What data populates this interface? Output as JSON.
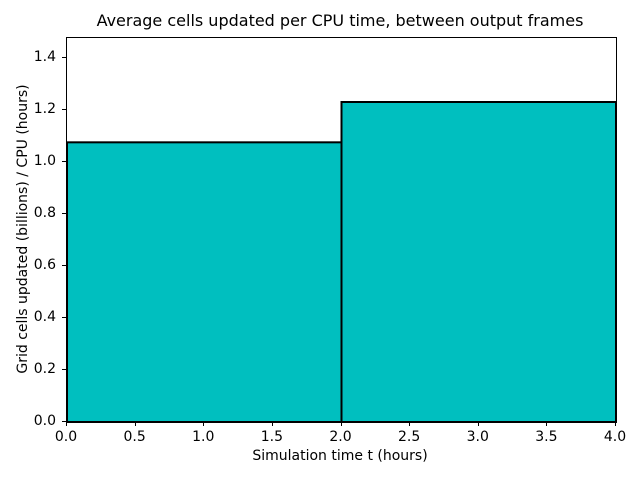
{
  "chart_data": {
    "type": "bar",
    "title": "Average cells updated per CPU time, between output frames",
    "xlabel": "Simulation time t (hours)",
    "ylabel": "Grid cells updated (billions) / CPU (hours)",
    "bin_edges": [
      0.0,
      2.0,
      4.0
    ],
    "values": [
      1.075,
      1.23
    ],
    "xlim": [
      0.0,
      4.0
    ],
    "ylim": [
      0.0,
      1.476
    ],
    "xtick_values": [
      0.0,
      0.5,
      1.0,
      1.5,
      2.0,
      2.5,
      3.0,
      3.5,
      4.0
    ],
    "xtick_labels": [
      "0.0",
      "0.5",
      "1.0",
      "1.5",
      "2.0",
      "2.5",
      "3.0",
      "3.5",
      "4.0"
    ],
    "ytick_values": [
      0.0,
      0.2,
      0.4,
      0.6,
      0.8,
      1.0,
      1.2,
      1.4
    ],
    "ytick_labels": [
      "0.0",
      "0.2",
      "0.4",
      "0.6",
      "0.8",
      "1.0",
      "1.2",
      "1.4"
    ],
    "bar_fill_color": "#00bfbf",
    "bar_edge_color": "#000000",
    "grid": false,
    "legend": "none"
  }
}
